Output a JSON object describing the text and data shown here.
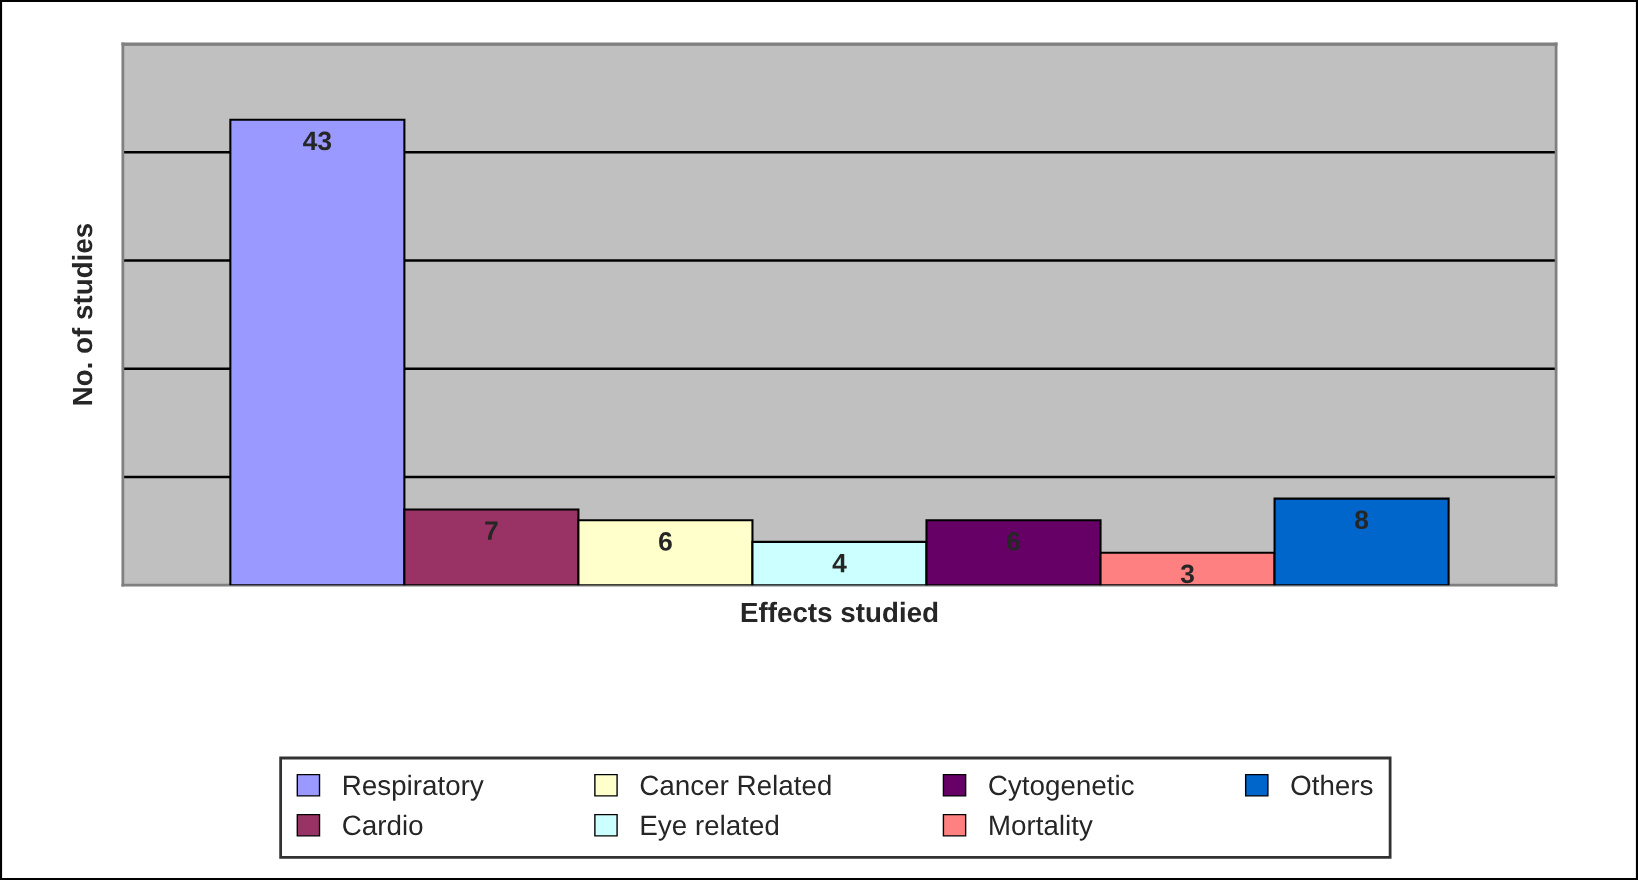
{
  "chart_data": {
    "type": "bar",
    "xlabel": "Effects studied",
    "ylabel": "No. of studies",
    "categories": [
      null
    ],
    "series": [
      {
        "name": "Respiratory",
        "color": "#9999ff",
        "values": [
          43
        ]
      },
      {
        "name": "Cardio",
        "color": "#993366",
        "values": [
          7
        ]
      },
      {
        "name": "Cancer Related",
        "color": "#ffffcc",
        "values": [
          6
        ]
      },
      {
        "name": "Eye related",
        "color": "#ccffff",
        "values": [
          4
        ]
      },
      {
        "name": "Cytogenetic",
        "color": "#660066",
        "values": [
          6
        ]
      },
      {
        "name": "Mortality",
        "color": "#ff8080",
        "values": [
          3
        ]
      },
      {
        "name": "Others",
        "color": "#0066cc",
        "values": [
          8
        ]
      }
    ],
    "ylim": [
      0,
      50
    ],
    "yticks": [
      {
        "value": 0,
        "label": null
      },
      {
        "value": 10,
        "label": null
      },
      {
        "value": 20,
        "label": null
      },
      {
        "value": 30,
        "label": null
      },
      {
        "value": 40,
        "label": null
      },
      {
        "value": 50,
        "label": null
      }
    ],
    "tick_labels": false,
    "grid": "y",
    "legend": "bottom",
    "data_labels": true
  }
}
